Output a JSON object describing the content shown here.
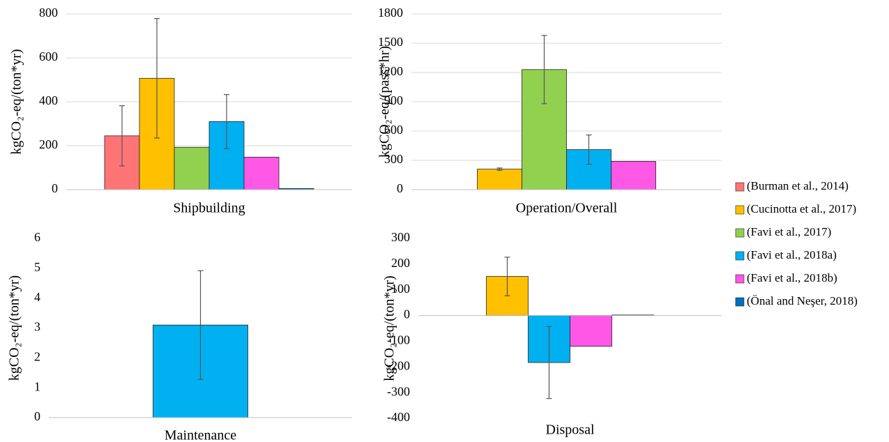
{
  "chart_data": [
    {
      "type": "bar",
      "categories": [
        "Shipbuilding"
      ],
      "ylabel": "kgCO₂-eq/(ton*yr)",
      "ylim": [
        0,
        800
      ],
      "yticks": [
        0,
        200,
        400,
        600,
        800
      ],
      "grid": true,
      "series": [
        {
          "name": "(Burman et al., 2014)",
          "color": "#ff7575",
          "values": [
            245
          ],
          "errors": [
            137
          ]
        },
        {
          "name": "(Cucinotta et al., 2017)",
          "color": "#ffc000",
          "values": [
            507
          ],
          "errors": [
            272
          ]
        },
        {
          "name": "(Favi et al., 2017)",
          "color": "#92d050",
          "values": [
            193
          ],
          "errors": [
            null
          ]
        },
        {
          "name": "(Favi et al., 2018a)",
          "color": "#00b0f0",
          "values": [
            310
          ],
          "errors": [
            123
          ]
        },
        {
          "name": "(Favi et al., 2018b)",
          "color": "#ff57e6",
          "values": [
            148
          ],
          "errors": [
            null
          ]
        },
        {
          "name": "(Önal and Neşer, 2018)",
          "color": "#0070c0",
          "values": [
            5
          ],
          "errors": [
            null
          ]
        }
      ]
    },
    {
      "type": "bar",
      "categories": [
        "Operation/Overall"
      ],
      "ylabel": "kgCO₂-eq/(pass*hr)",
      "ylim": [
        0,
        1800
      ],
      "yticks": [
        0,
        300,
        600,
        900,
        1200,
        1500,
        1800
      ],
      "grid": true,
      "series": [
        {
          "name": "(Burman et al., 2014)",
          "color": "#ff7575",
          "values": [
            null
          ],
          "errors": [
            null
          ]
        },
        {
          "name": "(Cucinotta et al., 2017)",
          "color": "#ffc000",
          "values": [
            210
          ],
          "errors": [
            12
          ]
        },
        {
          "name": "(Favi et al., 2017)",
          "color": "#92d050",
          "values": [
            1230
          ],
          "errors": [
            350
          ]
        },
        {
          "name": "(Favi et al., 2018a)",
          "color": "#00b0f0",
          "values": [
            410
          ],
          "errors": [
            150
          ]
        },
        {
          "name": "(Favi et al., 2018b)",
          "color": "#ff57e6",
          "values": [
            290
          ],
          "errors": [
            null
          ]
        },
        {
          "name": "(Önal and Neşer, 2018)",
          "color": "#0070c0",
          "values": [
            null
          ],
          "errors": [
            null
          ]
        }
      ]
    },
    {
      "type": "bar",
      "categories": [
        "Maintenance"
      ],
      "ylabel": "kgCO₂-eq/(ton*yr)",
      "ylim": [
        0,
        6
      ],
      "yticks": [
        0,
        1,
        2,
        3,
        4,
        5,
        6
      ],
      "grid": false,
      "series": [
        {
          "name": "(Favi et al., 2018a)",
          "color": "#00b0f0",
          "values": [
            3.1
          ],
          "errors": [
            1.82
          ]
        }
      ]
    },
    {
      "type": "bar",
      "categories": [
        "Disposal"
      ],
      "ylabel": "kgCO₂-eq/(ton*yr)",
      "ylim": [
        -400,
        300
      ],
      "yticks": [
        -400,
        -300,
        -200,
        -100,
        0,
        100,
        200,
        300
      ],
      "grid": false,
      "series": [
        {
          "name": "(Cucinotta et al., 2017)",
          "color": "#ffc000",
          "values": [
            152
          ],
          "errors": [
            75
          ]
        },
        {
          "name": "(Favi et al., 2018a)",
          "color": "#00b0f0",
          "values": [
            -183
          ],
          "errors": [
            140
          ]
        },
        {
          "name": "(Favi et al., 2018b)",
          "color": "#ff57e6",
          "values": [
            -120
          ],
          "errors": [
            null
          ]
        },
        {
          "name": "(Önal and Neşer, 2018)",
          "color": "#0070c0",
          "values": [
            2
          ],
          "errors": [
            null
          ]
        }
      ]
    }
  ]
}
